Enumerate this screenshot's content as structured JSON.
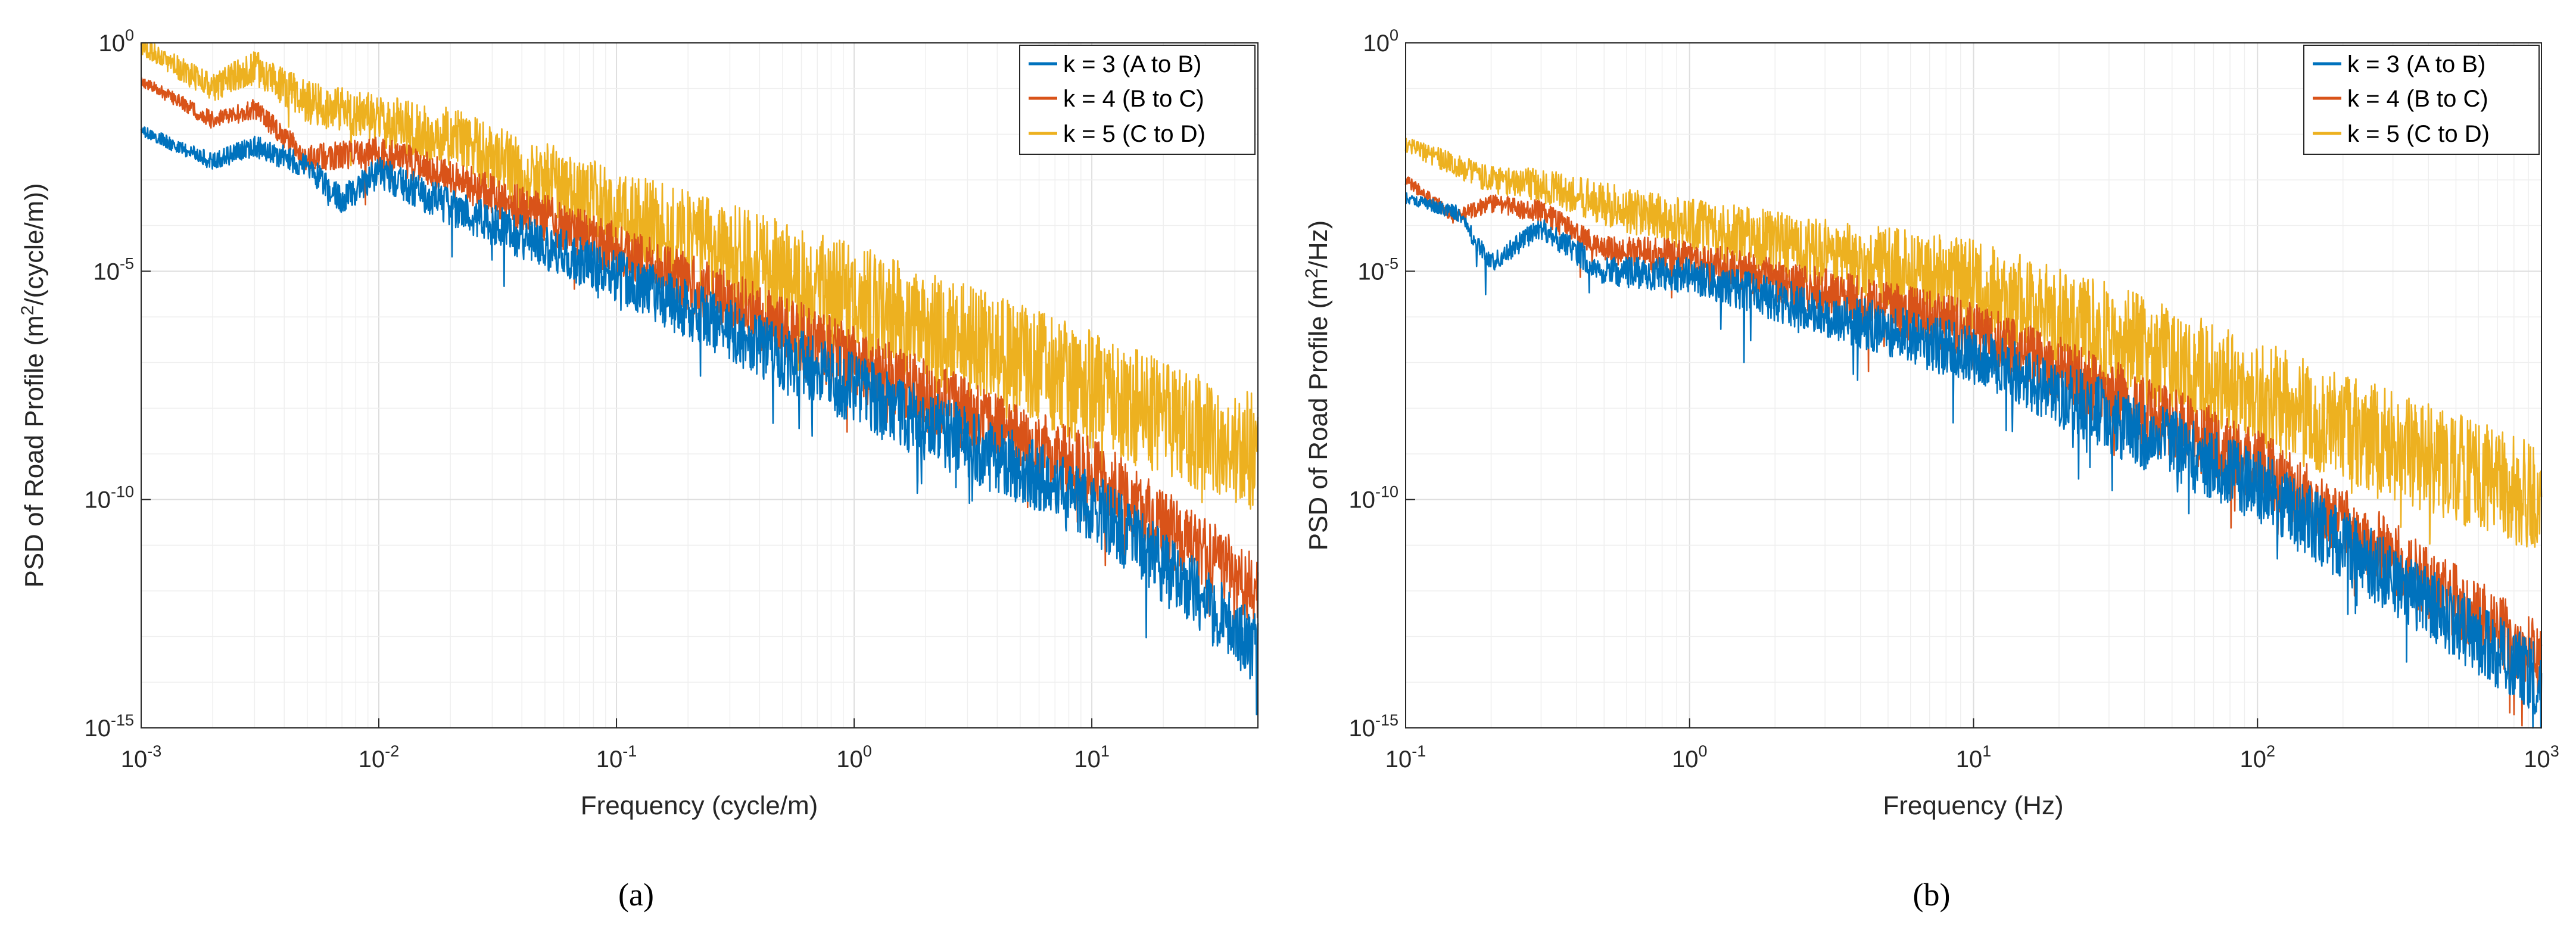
{
  "chart_data": [
    {
      "type": "line",
      "panel_label": "a",
      "xscale": "log",
      "yscale": "log",
      "xlim": [
        0.001,
        50
      ],
      "ylim": [
        1e-15,
        1
      ],
      "xlabel": {
        "prefix": "Frequency (cycle/m)",
        "sup": ""
      },
      "ylabel": {
        "prefix": "PSD of Road Profile (m",
        "sup": "2",
        "suffix": "/(cycle/m))"
      },
      "x_ticks": [
        {
          "value": 0.001,
          "base": "10",
          "exp": "-3"
        },
        {
          "value": 0.01,
          "base": "10",
          "exp": "-2"
        },
        {
          "value": 0.1,
          "base": "10",
          "exp": "-1"
        },
        {
          "value": 1,
          "base": "10",
          "exp": "0"
        },
        {
          "value": 10,
          "base": "10",
          "exp": "1"
        }
      ],
      "y_ticks": [
        {
          "value": 1,
          "base": "10",
          "exp": "0"
        },
        {
          "value": 1e-05,
          "base": "10",
          "exp": "-5"
        },
        {
          "value": 1e-10,
          "base": "10",
          "exp": "-10"
        },
        {
          "value": 1e-15,
          "base": "10",
          "exp": "-15"
        }
      ],
      "legend_position": "top-right",
      "series": [
        {
          "name": "k = 3 (A to B)",
          "color": "#0072BD",
          "anchors": [
            [
              0.001,
              0.012
            ],
            [
              0.002,
              0.0025
            ],
            [
              0.003,
              0.0055
            ],
            [
              0.005,
              0.002
            ],
            [
              0.007,
              0.00035
            ],
            [
              0.01,
              0.0015
            ],
            [
              0.02,
              0.00025
            ],
            [
              0.1,
              8e-06
            ],
            [
              1,
              2.5e-08
            ],
            [
              10,
              8e-11
            ],
            [
              50,
              5e-14
            ]
          ],
          "spread_db": 1.6
        },
        {
          "name": "k = 4 (B to C)",
          "color": "#D95319",
          "anchors": [
            [
              0.001,
              0.15
            ],
            [
              0.002,
              0.02
            ],
            [
              0.003,
              0.035
            ],
            [
              0.005,
              0.003
            ],
            [
              0.01,
              0.004
            ],
            [
              0.02,
              0.0012
            ],
            [
              0.1,
              3e-05
            ],
            [
              1,
              1e-07
            ],
            [
              10,
              4e-10
            ],
            [
              50,
              1e-12
            ]
          ],
          "spread_db": 1.6
        },
        {
          "name": "k = 5 (C to D)",
          "color": "#EDB120",
          "anchors": [
            [
              0.001,
              0.9
            ],
            [
              0.002,
              0.1
            ],
            [
              0.003,
              0.3
            ],
            [
              0.005,
              0.05
            ],
            [
              0.01,
              0.02
            ],
            [
              0.02,
              0.008
            ],
            [
              0.1,
              0.0002
            ],
            [
              1,
              2e-06
            ],
            [
              10,
              2.5e-08
            ],
            [
              50,
              1e-09
            ]
          ],
          "spread_db": 2.6
        }
      ]
    },
    {
      "type": "line",
      "panel_label": "b",
      "xscale": "log",
      "yscale": "log",
      "xlim": [
        0.1,
        1000
      ],
      "ylim": [
        1e-15,
        1
      ],
      "xlabel": {
        "prefix": "Frequency (Hz)",
        "sup": ""
      },
      "ylabel": {
        "prefix": "PSD of Road Profile (m",
        "sup": "2",
        "suffix": "/Hz)"
      },
      "x_ticks": [
        {
          "value": 0.1,
          "base": "10",
          "exp": "-1"
        },
        {
          "value": 1,
          "base": "10",
          "exp": "0"
        },
        {
          "value": 10,
          "base": "10",
          "exp": "1"
        },
        {
          "value": 100,
          "base": "10",
          "exp": "2"
        },
        {
          "value": 1000,
          "base": "10",
          "exp": "3"
        }
      ],
      "y_ticks": [
        {
          "value": 1,
          "base": "10",
          "exp": "0"
        },
        {
          "value": 1e-05,
          "base": "10",
          "exp": "-5"
        },
        {
          "value": 1e-10,
          "base": "10",
          "exp": "-10"
        },
        {
          "value": 1e-15,
          "base": "10",
          "exp": "-15"
        }
      ],
      "legend_position": "top-right",
      "series": [
        {
          "name": "k = 3 (A to B)",
          "color": "#0072BD",
          "anchors": [
            [
              0.1,
              0.0004
            ],
            [
              0.15,
              0.0002
            ],
            [
              0.2,
              1.5e-05
            ],
            [
              0.3,
              9e-05
            ],
            [
              0.5,
              1e-05
            ],
            [
              1,
              8e-06
            ],
            [
              10,
              1.5e-07
            ],
            [
              100,
              2e-10
            ],
            [
              1000,
              1e-14
            ]
          ],
          "spread_db": 1.6
        },
        {
          "name": "k = 4 (B to C)",
          "color": "#D95319",
          "anchors": [
            [
              0.1,
              0.001
            ],
            [
              0.15,
              0.00015
            ],
            [
              0.2,
              0.0003
            ],
            [
              0.3,
              0.0002
            ],
            [
              0.5,
              3e-05
            ],
            [
              1,
              2e-05
            ],
            [
              10,
              5e-07
            ],
            [
              100,
              6e-10
            ],
            [
              1000,
              3e-14
            ]
          ],
          "spread_db": 1.6
        },
        {
          "name": "k = 5 (C to D)",
          "color": "#EDB120",
          "anchors": [
            [
              0.1,
              0.006
            ],
            [
              0.2,
              0.001
            ],
            [
              0.3,
              0.0008
            ],
            [
              0.5,
              0.0003
            ],
            [
              1,
              0.0001
            ],
            [
              10,
              5e-06
            ],
            [
              100,
              2e-08
            ],
            [
              1000,
              1e-10
            ]
          ],
          "spread_db": 2.4
        }
      ]
    }
  ],
  "captions": {
    "a": "(a)",
    "b": "(b)"
  }
}
